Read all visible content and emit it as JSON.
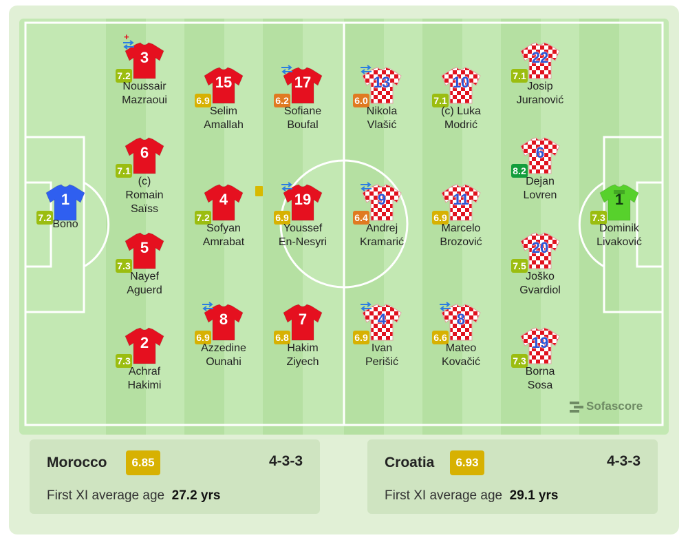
{
  "colors": {
    "pitch": "#c3e8b3",
    "card": "#e1f0d6",
    "morocco_shirt": "#e5101f",
    "croatia_shirt_red": "#e0121e",
    "croatia_number": "#2a55d6",
    "morocco_gk_shirt": "#2f5ff0",
    "croatia_gk_shirt": "#57d12c",
    "rating_olive": "#9bbd10",
    "rating_green": "#139d3c",
    "rating_gold": "#d7b102",
    "rating_orange": "#e07a21"
  },
  "home": {
    "players": [
      {
        "number": "1",
        "name1": "Bono",
        "name2": "",
        "rating": "7.2",
        "rating_color": "#9bbd10",
        "shirt": "gk-blue",
        "sub": false,
        "captain": false,
        "card": false
      },
      {
        "number": "3",
        "name1": "Noussair",
        "name2": "Mazraoui",
        "rating": "7.2",
        "rating_color": "#9bbd10",
        "shirt": "red",
        "sub": true,
        "injury": true
      },
      {
        "number": "6",
        "name1": "(c)",
        "name2": "Romain",
        "name3": "Saïss",
        "rating": "7.1",
        "rating_color": "#9bbd10",
        "shirt": "red",
        "sub": false
      },
      {
        "number": "5",
        "name1": "Nayef",
        "name2": "Aguerd",
        "rating": "7.3",
        "rating_color": "#9bbd10",
        "shirt": "red",
        "sub": false
      },
      {
        "number": "2",
        "name1": "Achraf",
        "name2": "Hakimi",
        "rating": "7.3",
        "rating_color": "#9bbd10",
        "shirt": "red",
        "sub": false
      },
      {
        "number": "15",
        "name1": "Selim",
        "name2": "Amallah",
        "rating": "6.9",
        "rating_color": "#d7b102",
        "shirt": "red",
        "sub": false
      },
      {
        "number": "4",
        "name1": "Sofyan",
        "name2": "Amrabat",
        "rating": "7.2",
        "rating_color": "#9bbd10",
        "shirt": "red",
        "sub": false,
        "card": true
      },
      {
        "number": "8",
        "name1": "Azzedine",
        "name2": "Ounahi",
        "rating": "6.9",
        "rating_color": "#d7b102",
        "shirt": "red",
        "sub": true
      },
      {
        "number": "17",
        "name1": "Sofiane",
        "name2": "Boufal",
        "rating": "6.2",
        "rating_color": "#e07a21",
        "shirt": "red",
        "sub": true
      },
      {
        "number": "19",
        "name1": "Youssef",
        "name2": "En-Nesyri",
        "rating": "6.9",
        "rating_color": "#d7b102",
        "shirt": "red",
        "sub": true
      },
      {
        "number": "7",
        "name1": "Hakim",
        "name2": "Ziyech",
        "rating": "6.8",
        "rating_color": "#d7b102",
        "shirt": "red",
        "sub": false
      }
    ]
  },
  "away": {
    "players": [
      {
        "number": "13",
        "name1": "Nikola",
        "name2": "Vlašić",
        "rating": "6.0",
        "rating_color": "#e07a21",
        "shirt": "checker",
        "sub": true
      },
      {
        "number": "9",
        "name1": "Andrej",
        "name2": "Kramarić",
        "rating": "6.4",
        "rating_color": "#e07a21",
        "shirt": "checker",
        "sub": true
      },
      {
        "number": "4",
        "name1": "Ivan",
        "name2": "Perišić",
        "rating": "6.9",
        "rating_color": "#d7b102",
        "shirt": "checker",
        "sub": true
      },
      {
        "number": "10",
        "name1": "(c) Luka",
        "name2": "Modrić",
        "rating": "7.1",
        "rating_color": "#9bbd10",
        "shirt": "checker",
        "sub": false
      },
      {
        "number": "11",
        "name1": "Marcelo",
        "name2": "Brozović",
        "rating": "6.9",
        "rating_color": "#d7b102",
        "shirt": "checker",
        "sub": false
      },
      {
        "number": "8",
        "name1": "Mateo",
        "name2": "Kovačić",
        "rating": "6.6",
        "rating_color": "#d7b102",
        "shirt": "checker",
        "sub": true
      },
      {
        "number": "22",
        "name1": "Josip",
        "name2": "Juranović",
        "rating": "7.1",
        "rating_color": "#9bbd10",
        "shirt": "checker",
        "sub": false
      },
      {
        "number": "6",
        "name1": "Dejan",
        "name2": "Lovren",
        "rating": "8.2",
        "rating_color": "#139d3c",
        "shirt": "checker",
        "sub": false
      },
      {
        "number": "20",
        "name1": "Joško",
        "name2": "Gvardiol",
        "rating": "7.5",
        "rating_color": "#9bbd10",
        "shirt": "checker",
        "sub": false
      },
      {
        "number": "19",
        "name1": "Borna",
        "name2": "Sosa",
        "rating": "7.3",
        "rating_color": "#9bbd10",
        "shirt": "checker",
        "sub": false
      },
      {
        "number": "1",
        "name1": "Dominik",
        "name2": "Livaković",
        "rating": "7.3",
        "rating_color": "#9bbd10",
        "shirt": "gk-green",
        "sub": false
      }
    ]
  },
  "brand": "Sofascore",
  "summary": {
    "home": {
      "team": "Morocco",
      "rating": "6.85",
      "formation": "4-3-3",
      "age_label": "First XI average age",
      "age_value": "27.2 yrs"
    },
    "away": {
      "team": "Croatia",
      "rating": "6.93",
      "formation": "4-3-3",
      "age_label": "First XI average age",
      "age_value": "29.1 yrs"
    }
  }
}
